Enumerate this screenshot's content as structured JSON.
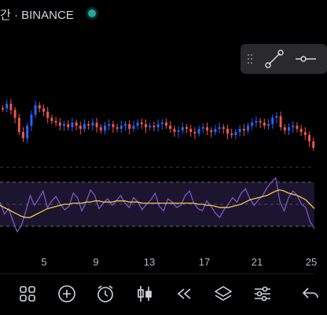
{
  "header": {
    "title": "간 · BINANCE",
    "status_color": "#26a69a"
  },
  "drawing_toolbar": {
    "tools": [
      "drag-handle-icon",
      "trend-line-icon",
      "horizontal-ray-icon"
    ]
  },
  "colors": {
    "bull": "#2962ff",
    "bear": "#ef5350",
    "rsi_line": "#7e57c2",
    "rsi_ma": "#f2c94c",
    "rsi_band": "#1c1530"
  },
  "chart_data": {
    "type": "candlestick",
    "x_tick_labels": [
      "5",
      "9",
      "13",
      "17",
      "21",
      "25"
    ],
    "indicator": {
      "type": "line",
      "upper_band": 70,
      "lower_band": 30,
      "middle": 50,
      "rsi": [
        52,
        41,
        46,
        35,
        25,
        31,
        44,
        58,
        49,
        55,
        62,
        47,
        53,
        57,
        50,
        45,
        48,
        60,
        56,
        44,
        52,
        63,
        58,
        46,
        51,
        55,
        49,
        53,
        58,
        51,
        47,
        56,
        52,
        45,
        50,
        54,
        60,
        48,
        44,
        55,
        52,
        47,
        49,
        58,
        62,
        51,
        46,
        44,
        53,
        48,
        42,
        38,
        45,
        50,
        56,
        52,
        60,
        64,
        55,
        49,
        54,
        58,
        65,
        70,
        74,
        52,
        44,
        56,
        62,
        58,
        50,
        47,
        34,
        28
      ],
      "rsi_ma": [
        49,
        47,
        45,
        43,
        41,
        39,
        38,
        38,
        40,
        42,
        44,
        46,
        47,
        48,
        49,
        50,
        50,
        51,
        51,
        51,
        52,
        52,
        53,
        53,
        52,
        52,
        52,
        53,
        53,
        53,
        52,
        52,
        52,
        51,
        51,
        51,
        51,
        51,
        51,
        51,
        51,
        51,
        51,
        51,
        51,
        51,
        50,
        50,
        49,
        49,
        48,
        47,
        47,
        47,
        48,
        49,
        50,
        52,
        54,
        55,
        56,
        57,
        58,
        60,
        62,
        63,
        62,
        60,
        59,
        58,
        56,
        54,
        50,
        46
      ]
    },
    "tools": []
  },
  "bottom_toolbar": {
    "buttons": [
      "grid-icon",
      "add-icon",
      "alarm-icon",
      "candles-icon",
      "rewind-icon",
      "layers-icon",
      "settings-sliders-icon",
      "undo-icon"
    ]
  }
}
